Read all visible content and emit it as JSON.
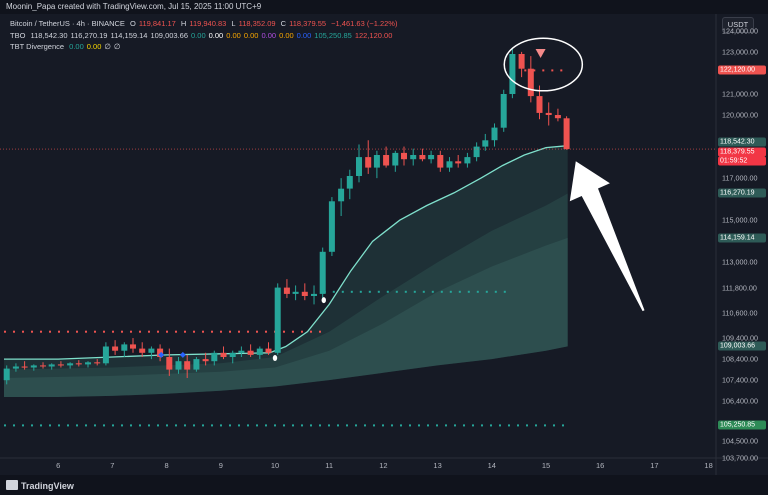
{
  "header": {
    "credit": "Moonin_Papa created with TradingView.com, Jul 15, 2025 11:00 UTC+9"
  },
  "legend": {
    "symbol_line": {
      "symbol": "Bitcoin / TetherUS · 4h · BINANCE",
      "o_label": "O",
      "o": "119,841.17",
      "h_label": "H",
      "h": "119,940.83",
      "l_label": "L",
      "l": "118,352.09",
      "c_label": "C",
      "c": "118,379.55",
      "change": "−1,461.63 (−1.22%)"
    },
    "tbo_line": {
      "label": "TBO",
      "values": [
        "118,542.30",
        "116,270.19",
        "114,159.14",
        "109,003.66",
        "0.00",
        "0.00",
        "0.00",
        "0.00",
        "0.00",
        "0.00",
        "0.00",
        "105,250.85",
        "122,120.00"
      ],
      "colors": [
        "#d1d4dc",
        "#d1d4dc",
        "#d1d4dc",
        "#d1d4dc",
        "#26a69a",
        "#ffffff",
        "#f7a600",
        "#f7a600",
        "#b04ee0",
        "#f7a600",
        "#2962ff",
        "#26a69a",
        "#ef5350"
      ]
    },
    "div_line": {
      "label": "TBT Divergence",
      "values": [
        "0.00",
        "0.00",
        "∅",
        "∅"
      ],
      "colors": [
        "#26a69a",
        "#f7d600",
        "#d1d4dc",
        "#d1d4dc"
      ]
    }
  },
  "currency_button": "USDT",
  "y_axis": [
    "124,000.00",
    "123,000.00",
    "121,000.00",
    "120,000.00",
    "118,000.00",
    "117,000.00",
    "115,000.00",
    "113,000.00",
    "111,800.00",
    "110,600.00",
    "109,400.00",
    "108,400.00",
    "107,400.00",
    "106,400.00",
    "104,500.00",
    "103,700.00"
  ],
  "x_axis": [
    "6",
    "7",
    "8",
    "9",
    "10",
    "11",
    "12",
    "13",
    "14",
    "15",
    "16",
    "17",
    "18"
  ],
  "price_tags": [
    {
      "text": "122,120.00",
      "color": "#ef5350"
    },
    {
      "text": "118,542.30",
      "color": "#2e5b57"
    },
    {
      "text": "118,379.55",
      "color": "#f23645"
    },
    {
      "text": "01:59:52",
      "color": "#f23645"
    },
    {
      "text": "116,270.19",
      "color": "#2e5b57"
    },
    {
      "text": "114,159.14",
      "color": "#2e5b57"
    },
    {
      "text": "109,003.66",
      "color": "#2e5b57"
    },
    {
      "text": "105,250.85",
      "color": "#2e8b57"
    }
  ],
  "chart_data": {
    "type": "candlestick",
    "timeframe": "4h",
    "ylim": [
      103700,
      124800
    ],
    "xlim": [
      5.0,
      18.0
    ],
    "candles": [
      {
        "x": 5.05,
        "o": 107400,
        "h": 108100,
        "l": 107200,
        "c": 107950
      },
      {
        "x": 5.22,
        "o": 107950,
        "h": 108200,
        "l": 107800,
        "c": 108050
      },
      {
        "x": 5.38,
        "o": 108050,
        "h": 108300,
        "l": 107900,
        "c": 108000
      },
      {
        "x": 5.55,
        "o": 108000,
        "h": 108150,
        "l": 107850,
        "c": 108100
      },
      {
        "x": 5.72,
        "o": 108100,
        "h": 108250,
        "l": 107950,
        "c": 108050
      },
      {
        "x": 5.88,
        "o": 108050,
        "h": 108200,
        "l": 107900,
        "c": 108150
      },
      {
        "x": 6.05,
        "o": 108150,
        "h": 108300,
        "l": 108000,
        "c": 108100
      },
      {
        "x": 6.22,
        "o": 108100,
        "h": 108250,
        "l": 107950,
        "c": 108200
      },
      {
        "x": 6.38,
        "o": 108200,
        "h": 108350,
        "l": 108050,
        "c": 108150
      },
      {
        "x": 6.55,
        "o": 108150,
        "h": 108300,
        "l": 108000,
        "c": 108250
      },
      {
        "x": 6.72,
        "o": 108250,
        "h": 108400,
        "l": 108100,
        "c": 108200
      },
      {
        "x": 6.88,
        "o": 108200,
        "h": 109200,
        "l": 108100,
        "c": 109000
      },
      {
        "x": 7.05,
        "o": 109000,
        "h": 109300,
        "l": 108600,
        "c": 108800
      },
      {
        "x": 7.22,
        "o": 108800,
        "h": 109200,
        "l": 108500,
        "c": 109100
      },
      {
        "x": 7.38,
        "o": 109100,
        "h": 109400,
        "l": 108700,
        "c": 108900
      },
      {
        "x": 7.55,
        "o": 108900,
        "h": 109200,
        "l": 108500,
        "c": 108700
      },
      {
        "x": 7.72,
        "o": 108700,
        "h": 109000,
        "l": 108400,
        "c": 108900
      },
      {
        "x": 7.88,
        "o": 108900,
        "h": 109100,
        "l": 108300,
        "c": 108500
      },
      {
        "x": 8.05,
        "o": 108500,
        "h": 108900,
        "l": 107600,
        "c": 107900
      },
      {
        "x": 8.22,
        "o": 107900,
        "h": 108500,
        "l": 107700,
        "c": 108300
      },
      {
        "x": 8.38,
        "o": 108300,
        "h": 108600,
        "l": 107500,
        "c": 107900
      },
      {
        "x": 8.55,
        "o": 107900,
        "h": 108500,
        "l": 107800,
        "c": 108400
      },
      {
        "x": 8.72,
        "o": 108400,
        "h": 108700,
        "l": 108100,
        "c": 108300
      },
      {
        "x": 8.88,
        "o": 108300,
        "h": 108800,
        "l": 108100,
        "c": 108700
      },
      {
        "x": 9.05,
        "o": 108700,
        "h": 109000,
        "l": 108400,
        "c": 108500
      },
      {
        "x": 9.22,
        "o": 108500,
        "h": 108800,
        "l": 108200,
        "c": 108700
      },
      {
        "x": 9.38,
        "o": 108700,
        "h": 109000,
        "l": 108500,
        "c": 108800
      },
      {
        "x": 9.55,
        "o": 108800,
        "h": 109100,
        "l": 108500,
        "c": 108600
      },
      {
        "x": 9.72,
        "o": 108600,
        "h": 109000,
        "l": 108400,
        "c": 108900
      },
      {
        "x": 9.88,
        "o": 108900,
        "h": 109200,
        "l": 108600,
        "c": 108700
      },
      {
        "x": 10.05,
        "o": 108700,
        "h": 112000,
        "l": 108600,
        "c": 111800
      },
      {
        "x": 10.22,
        "o": 111800,
        "h": 112200,
        "l": 111300,
        "c": 111500
      },
      {
        "x": 10.38,
        "o": 111500,
        "h": 111900,
        "l": 111200,
        "c": 111600
      },
      {
        "x": 10.55,
        "o": 111600,
        "h": 112000,
        "l": 111200,
        "c": 111400
      },
      {
        "x": 10.72,
        "o": 111400,
        "h": 111900,
        "l": 111000,
        "c": 111500
      },
      {
        "x": 10.88,
        "o": 111500,
        "h": 113700,
        "l": 111300,
        "c": 113500
      },
      {
        "x": 11.05,
        "o": 113500,
        "h": 116100,
        "l": 113300,
        "c": 115900
      },
      {
        "x": 11.22,
        "o": 115900,
        "h": 117000,
        "l": 115200,
        "c": 116500
      },
      {
        "x": 11.38,
        "o": 116500,
        "h": 117400,
        "l": 116000,
        "c": 117100
      },
      {
        "x": 11.55,
        "o": 117100,
        "h": 118600,
        "l": 116800,
        "c": 118000
      },
      {
        "x": 11.72,
        "o": 118000,
        "h": 118800,
        "l": 117200,
        "c": 117500
      },
      {
        "x": 11.88,
        "o": 117500,
        "h": 118300,
        "l": 117000,
        "c": 118100
      },
      {
        "x": 12.05,
        "o": 118100,
        "h": 118500,
        "l": 117500,
        "c": 117600
      },
      {
        "x": 12.22,
        "o": 117600,
        "h": 118300,
        "l": 117300,
        "c": 118200
      },
      {
        "x": 12.38,
        "o": 118200,
        "h": 118500,
        "l": 117600,
        "c": 117900
      },
      {
        "x": 12.55,
        "o": 117900,
        "h": 118400,
        "l": 117600,
        "c": 118100
      },
      {
        "x": 12.72,
        "o": 118100,
        "h": 118400,
        "l": 117800,
        "c": 117900
      },
      {
        "x": 12.88,
        "o": 117900,
        "h": 118300,
        "l": 117700,
        "c": 118100
      },
      {
        "x": 13.05,
        "o": 118100,
        "h": 118300,
        "l": 117300,
        "c": 117500
      },
      {
        "x": 13.22,
        "o": 117500,
        "h": 118000,
        "l": 117300,
        "c": 117800
      },
      {
        "x": 13.38,
        "o": 117800,
        "h": 118100,
        "l": 117500,
        "c": 117700
      },
      {
        "x": 13.55,
        "o": 117700,
        "h": 118200,
        "l": 117500,
        "c": 118000
      },
      {
        "x": 13.72,
        "o": 118000,
        "h": 118700,
        "l": 117800,
        "c": 118500
      },
      {
        "x": 13.88,
        "o": 118500,
        "h": 119100,
        "l": 118300,
        "c": 118800
      },
      {
        "x": 14.05,
        "o": 118800,
        "h": 119600,
        "l": 118500,
        "c": 119400
      },
      {
        "x": 14.22,
        "o": 119400,
        "h": 121200,
        "l": 119200,
        "c": 121000
      },
      {
        "x": 14.38,
        "o": 121000,
        "h": 123200,
        "l": 120800,
        "c": 122900
      },
      {
        "x": 14.55,
        "o": 122900,
        "h": 123000,
        "l": 121800,
        "c": 122200
      },
      {
        "x": 14.72,
        "o": 122200,
        "h": 122800,
        "l": 120600,
        "c": 120900
      },
      {
        "x": 14.88,
        "o": 120900,
        "h": 121400,
        "l": 119800,
        "c": 120100
      },
      {
        "x": 15.05,
        "o": 120100,
        "h": 120600,
        "l": 119500,
        "c": 120000
      },
      {
        "x": 15.22,
        "o": 120000,
        "h": 120300,
        "l": 119700,
        "c": 119850
      },
      {
        "x": 15.38,
        "o": 119841.17,
        "h": 119940.83,
        "l": 118352.09,
        "c": 118379.55
      }
    ],
    "ma_fast": [
      [
        5.0,
        108400
      ],
      [
        6.0,
        108400
      ],
      [
        7.0,
        108500
      ],
      [
        8.0,
        108600
      ],
      [
        9.0,
        108650
      ],
      [
        9.9,
        108700
      ],
      [
        10.2,
        109000
      ],
      [
        10.6,
        109700
      ],
      [
        11.0,
        111000
      ],
      [
        11.4,
        112600
      ],
      [
        11.8,
        114000
      ],
      [
        12.3,
        115000
      ],
      [
        12.8,
        115700
      ],
      [
        13.3,
        116300
      ],
      [
        13.8,
        117000
      ],
      [
        14.2,
        117600
      ],
      [
        14.6,
        118100
      ],
      [
        15.0,
        118450
      ],
      [
        15.4,
        118542.3
      ]
    ],
    "band_upper_fast": [
      [
        5.0,
        108400
      ],
      [
        9.9,
        108700
      ],
      [
        11.0,
        111000
      ],
      [
        12.3,
        115000
      ],
      [
        13.8,
        117000
      ],
      [
        15.4,
        118542.3
      ]
    ],
    "band_mid": [
      [
        5.0,
        107900
      ],
      [
        7.0,
        108000
      ],
      [
        9.0,
        108200
      ],
      [
        10.0,
        108500
      ],
      [
        11.0,
        109700
      ],
      [
        12.0,
        111400
      ],
      [
        13.0,
        113000
      ],
      [
        14.0,
        114500
      ],
      [
        15.0,
        115700
      ],
      [
        15.4,
        116270.19
      ]
    ],
    "band_slow": [
      [
        5.0,
        107500
      ],
      [
        7.0,
        107600
      ],
      [
        9.0,
        107800
      ],
      [
        10.0,
        108000
      ],
      [
        11.0,
        108800
      ],
      [
        12.0,
        110100
      ],
      [
        13.0,
        111600
      ],
      [
        14.0,
        112800
      ],
      [
        15.0,
        113800
      ],
      [
        15.4,
        114159.14
      ]
    ],
    "band_base": [
      [
        5.0,
        106600
      ],
      [
        6.0,
        106600
      ],
      [
        7.0,
        106650
      ],
      [
        8.0,
        106750
      ],
      [
        9.0,
        106900
      ],
      [
        10.0,
        107100
      ],
      [
        11.0,
        107400
      ],
      [
        12.0,
        107750
      ],
      [
        13.0,
        108100
      ],
      [
        14.0,
        108400
      ],
      [
        15.0,
        108800
      ],
      [
        15.4,
        109003.66
      ]
    ],
    "dotted_levels": [
      {
        "y": 122120.0,
        "x0": 14.6,
        "x1": 15.4,
        "color": "#ef5350"
      },
      {
        "y": 109700,
        "x0": 5.0,
        "x1": 10.9,
        "color": "#ef5350"
      },
      {
        "y": 111600,
        "x0": 10.9,
        "x1": 14.3,
        "color": "#26a69a"
      },
      {
        "y": 105250.85,
        "x0": 5.0,
        "x1": 15.4,
        "color": "#26a69a"
      }
    ],
    "markers": [
      {
        "x": 7.9,
        "y": 108600,
        "shape": "diamond",
        "color": "#2962ff"
      },
      {
        "x": 8.3,
        "y": 108600,
        "shape": "diamond",
        "color": "#2962ff"
      },
      {
        "x": 10.0,
        "y": 108450,
        "shape": "oval",
        "color": "#ffffff"
      },
      {
        "x": 10.9,
        "y": 111200,
        "shape": "oval",
        "color": "#ffffff"
      },
      {
        "x": 14.9,
        "y": 122900,
        "shape": "triangle-down",
        "color": "#f48a8a"
      }
    ],
    "annotations": [
      {
        "type": "ellipse",
        "cx": 14.95,
        "cy": 122400,
        "rx": 0.72,
        "ry": 1250
      },
      {
        "type": "arrow",
        "from": [
          16.8,
          110700
        ],
        "to": [
          15.55,
          117800
        ]
      }
    ]
  }
}
